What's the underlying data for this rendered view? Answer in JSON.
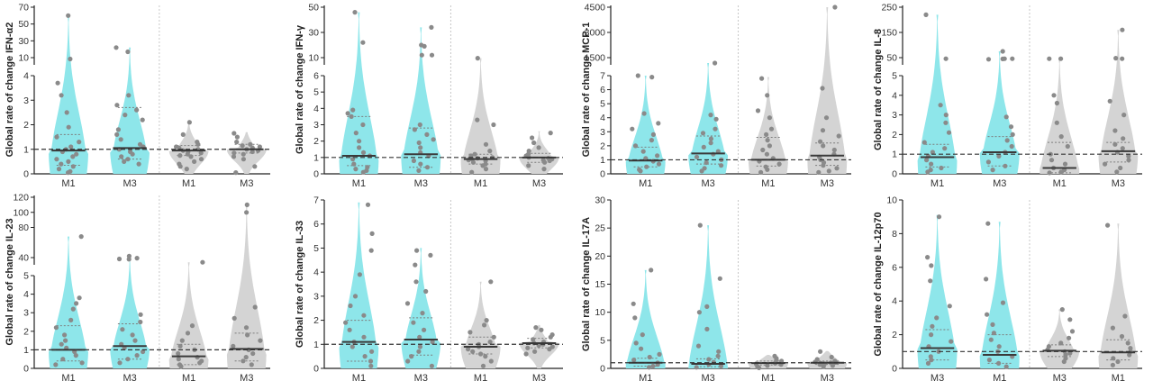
{
  "colors": {
    "cyan": "#8ee6ea",
    "gray": "#d4d4d4",
    "dot": "#8a8a8a",
    "median": "#3a3a3a",
    "quartile": "#7d7d7d",
    "reference": "#333333",
    "divider": "#c8c8c8"
  },
  "chart_data": [
    {
      "type": "violin",
      "ylabel": "Global rate of change IFN-α2",
      "reference_line": 1,
      "y_broken_axis": {
        "lower": [
          0,
          4
        ],
        "upper": [
          0,
          70
        ]
      },
      "lower_ticks": [
        "0",
        "1",
        "2",
        "3",
        "4"
      ],
      "upper_ticks": [
        "10",
        "30",
        "50",
        "70"
      ],
      "categories": [
        "M1",
        "M3",
        "M1",
        "M3"
      ],
      "groups": [
        "cyan",
        "cyan",
        "gray",
        "gray"
      ],
      "medians": [
        0.95,
        1.05,
        0.95,
        1.0
      ],
      "quartiles": [
        [
          0.35,
          1.6
        ],
        [
          0.6,
          2.7
        ],
        [
          0.75,
          1.15
        ],
        [
          0.85,
          1.2
        ]
      ],
      "maxima": [
        60,
        22,
        2.2,
        1.7
      ],
      "points": [
        [
          60,
          7.5,
          3.7,
          3.2,
          2.5,
          1.9,
          1.5,
          1.3,
          1.1,
          1.0,
          0.9,
          0.8,
          0.7,
          0.6,
          0.5,
          0.4,
          0.3,
          0.2,
          0.1,
          0.05
        ],
        [
          22,
          17,
          3.2,
          2.8,
          2.6,
          2.4,
          2.2,
          1.8,
          1.6,
          1.4,
          1.2,
          1.1,
          1.0,
          0.9,
          0.8,
          0.7,
          0.6,
          0.5,
          0.4
        ],
        [
          2.1,
          1.6,
          1.3,
          1.2,
          1.1,
          1.05,
          1.0,
          0.95,
          0.9,
          0.85,
          0.8,
          0.75,
          0.7,
          0.6,
          0.5,
          0.4,
          0.3,
          0.2
        ],
        [
          1.65,
          1.5,
          1.3,
          1.2,
          1.15,
          1.1,
          1.05,
          1.0,
          0.95,
          0.9,
          0.85,
          0.8,
          0.7,
          0.6,
          0.3,
          0.05
        ]
      ]
    },
    {
      "type": "violin",
      "ylabel": "Global rate of change IFN-γ",
      "reference_line": 1,
      "y_broken_axis": {
        "lower": [
          0,
          6
        ],
        "upper": [
          0,
          50
        ]
      },
      "lower_ticks": [
        "0",
        "1",
        "2",
        "3",
        "4",
        "5",
        "6"
      ],
      "upper_ticks": [
        "10",
        "30",
        "50"
      ],
      "categories": [
        "M1",
        "M3",
        "M1",
        "M3"
      ],
      "groups": [
        "cyan",
        "cyan",
        "gray",
        "gray"
      ],
      "medians": [
        1.1,
        1.2,
        0.9,
        1.0
      ],
      "quartiles": [
        [
          0.5,
          3.5
        ],
        [
          0.4,
          2.8
        ],
        [
          0.6,
          1.2
        ],
        [
          0.7,
          1.25
        ]
      ],
      "maxima": [
        46,
        34,
        9,
        2.6
      ],
      "points": [
        [
          46,
          22,
          3.9,
          3.7,
          3.5,
          3.0,
          2.5,
          2.0,
          1.6,
          1.3,
          1.1,
          0.9,
          0.6,
          0.4,
          0.3,
          0.2,
          0.1
        ],
        [
          34,
          20,
          19,
          12,
          12,
          3.0,
          2.7,
          2.4,
          2.1,
          1.9,
          1.6,
          1.3,
          1.1,
          0.8,
          0.6,
          0.4,
          0.2
        ],
        [
          9,
          3.3,
          3.0,
          1.8,
          1.4,
          1.2,
          1.1,
          1.0,
          0.95,
          0.9,
          0.85,
          0.8,
          0.7,
          0.6,
          0.5,
          0.3,
          0.1
        ],
        [
          2.5,
          2.2,
          1.9,
          1.6,
          1.4,
          1.2,
          1.1,
          1.0,
          0.95,
          0.9,
          0.85,
          0.8,
          0.7,
          0.5,
          0.3
        ]
      ]
    },
    {
      "type": "violin",
      "ylabel": "Global rate of change MCP-1",
      "reference_line": 1,
      "y_broken_axis": {
        "lower": [
          0,
          7
        ],
        "upper": [
          0,
          4500
        ]
      },
      "lower_ticks": [
        "0",
        "1",
        "2",
        "3",
        "4",
        "5",
        "6",
        "7"
      ],
      "upper_ticks": [
        "1500",
        "3000",
        "4500"
      ],
      "categories": [
        "M1",
        "M3",
        "M1",
        "M3"
      ],
      "groups": [
        "cyan",
        "cyan",
        "gray",
        "gray"
      ],
      "medians": [
        0.95,
        1.45,
        1.0,
        1.3
      ],
      "quartiles": [
        [
          0.5,
          1.9
        ],
        [
          0.7,
          2.7
        ],
        [
          0.55,
          2.6
        ],
        [
          0.6,
          2.2
        ]
      ],
      "maxima": [
        7.0,
        7.2,
        6.9,
        4500
      ],
      "points": [
        [
          7.0,
          6.9,
          4.3,
          3.6,
          3.2,
          2.8,
          2.4,
          2.0,
          1.6,
          1.3,
          1.1,
          0.9,
          0.7,
          0.5,
          0.3,
          0.2
        ],
        [
          7.2,
          4.2,
          3.9,
          3.2,
          2.9,
          2.5,
          2.2,
          1.9,
          1.6,
          1.4,
          1.2,
          1.0,
          0.8,
          0.6,
          0.4,
          0.2
        ],
        [
          6.8,
          5.6,
          4.5,
          4.0,
          3.2,
          2.8,
          2.4,
          2.0,
          1.7,
          1.4,
          1.1,
          0.9,
          0.7,
          0.5,
          0.3,
          0.1
        ],
        [
          4500,
          6.1,
          4.0,
          3.1,
          2.7,
          2.3,
          2.0,
          1.7,
          1.4,
          1.2,
          1.0,
          0.8,
          0.6,
          0.4,
          0.2,
          0.1
        ]
      ]
    },
    {
      "type": "violin",
      "ylabel": "Global rate of change IL-8",
      "reference_line": 1,
      "y_broken_axis": {
        "lower": [
          0,
          5
        ],
        "upper": [
          0,
          250
        ]
      },
      "lower_ticks": [
        "0",
        "1",
        "2",
        "3",
        "4",
        "5"
      ],
      "upper_ticks": [
        "50",
        "150",
        "250"
      ],
      "categories": [
        "M1",
        "M3",
        "M1",
        "M3"
      ],
      "groups": [
        "cyan",
        "cyan",
        "gray",
        "gray"
      ],
      "medians": [
        0.85,
        1.1,
        0.3,
        1.15
      ],
      "quartiles": [
        [
          0.35,
          1.5
        ],
        [
          0.4,
          1.9
        ],
        [
          0.05,
          1.6
        ],
        [
          0.6,
          1.6
        ]
      ],
      "maxima": [
        220,
        75,
        40,
        160
      ],
      "points": [
        [
          220,
          40,
          3.5,
          3.0,
          2.6,
          2.1,
          1.6,
          1.3,
          1.1,
          0.9,
          0.7,
          0.5,
          0.3,
          0.2,
          0.1
        ],
        [
          75,
          40,
          40,
          38,
          35,
          2.9,
          2.4,
          2.0,
          1.7,
          1.4,
          1.1,
          0.9,
          0.6,
          0.4,
          0.2
        ],
        [
          40,
          40,
          4.0,
          3.6,
          2.6,
          1.9,
          1.4,
          1.0,
          0.7,
          0.5,
          0.3,
          0.2,
          0.1,
          0.05
        ],
        [
          160,
          45,
          40,
          3.7,
          3.0,
          2.2,
          1.8,
          1.5,
          1.3,
          1.1,
          0.9,
          0.7,
          0.5,
          0.3,
          0.1
        ]
      ]
    },
    {
      "type": "violin",
      "ylabel": "Global rate of change IL-23",
      "reference_line": 1,
      "y_broken_axis": {
        "lower": [
          0,
          5
        ],
        "upper": [
          0,
          120
        ]
      },
      "lower_ticks": [
        "0",
        "1",
        "2",
        "3",
        "4",
        "5"
      ],
      "upper_ticks": [
        "40",
        "80",
        "100",
        "120"
      ],
      "categories": [
        "M1",
        "M3",
        "M1",
        "M3"
      ],
      "groups": [
        "cyan",
        "cyan",
        "gray",
        "gray"
      ],
      "medians": [
        1.0,
        1.2,
        0.65,
        1.05
      ],
      "quartiles": [
        [
          0.4,
          2.3
        ],
        [
          0.5,
          2.4
        ],
        [
          0.2,
          1.3
        ],
        [
          0.4,
          1.9
        ]
      ],
      "maxima": [
        68,
        42,
        5.6,
        110
      ],
      "points": [
        [
          68,
          3.8,
          3.5,
          3.2,
          2.6,
          2.2,
          1.8,
          1.5,
          1.3,
          1.1,
          0.9,
          0.7,
          0.5,
          0.3,
          0.2
        ],
        [
          42,
          36,
          30,
          28,
          2.9,
          2.5,
          2.1,
          1.8,
          1.5,
          1.3,
          1.1,
          0.9,
          0.7,
          0.5,
          0.3
        ],
        [
          5.6,
          2.3,
          1.9,
          1.5,
          1.2,
          1.0,
          0.8,
          0.6,
          0.5,
          0.4,
          0.3,
          0.2,
          0.1
        ],
        [
          110,
          100,
          3.3,
          2.7,
          2.2,
          1.8,
          1.5,
          1.2,
          1.0,
          0.8,
          0.6,
          0.4,
          0.2
        ]
      ]
    },
    {
      "type": "violin",
      "ylabel": "Global rate of change IL-33",
      "reference_line": 1,
      "y_broken_axis": {
        "lower": [
          0,
          7
        ],
        "upper": null
      },
      "lower_ticks": [
        "0",
        "1",
        "2",
        "3",
        "4",
        "5",
        "6",
        "7"
      ],
      "upper_ticks": [],
      "categories": [
        "M1",
        "M3",
        "M1",
        "M3"
      ],
      "groups": [
        "cyan",
        "cyan",
        "gray",
        "gray"
      ],
      "medians": [
        1.1,
        1.2,
        0.9,
        1.05
      ],
      "quartiles": [
        [
          0.3,
          2.0
        ],
        [
          0.55,
          2.1
        ],
        [
          0.6,
          1.3
        ],
        [
          0.85,
          1.25
        ]
      ],
      "maxima": [
        6.9,
        5.0,
        3.6,
        1.8
      ],
      "points": [
        [
          6.8,
          5.6,
          4.9,
          3.9,
          3.0,
          2.6,
          2.2,
          1.9,
          1.6,
          1.3,
          1.1,
          0.9,
          0.7,
          0.5,
          0.3,
          0.1
        ],
        [
          4.9,
          4.7,
          4.3,
          3.6,
          3.2,
          2.7,
          2.3,
          1.9,
          1.6,
          1.3,
          1.1,
          0.9,
          0.7,
          0.5,
          0.3,
          0.1
        ],
        [
          3.6,
          2.0,
          1.8,
          1.5,
          1.3,
          1.1,
          1.0,
          0.9,
          0.8,
          0.7,
          0.6,
          0.5,
          0.3,
          0.1
        ],
        [
          1.7,
          1.6,
          1.4,
          1.3,
          1.2,
          1.1,
          1.05,
          1.0,
          0.95,
          0.9,
          0.85,
          0.8,
          0.7,
          0.6
        ]
      ]
    },
    {
      "type": "violin",
      "ylabel": "Global rate of change IL-17A",
      "reference_line": 1,
      "y_broken_axis": {
        "lower": [
          0,
          30
        ],
        "upper": null
      },
      "lower_ticks": [
        "0",
        "5",
        "10",
        "15",
        "20",
        "25",
        "30"
      ],
      "upper_ticks": [],
      "categories": [
        "M1",
        "M3",
        "M1",
        "M3"
      ],
      "groups": [
        "cyan",
        "cyan",
        "gray",
        "gray"
      ],
      "medians": [
        1.0,
        0.8,
        0.95,
        1.0
      ],
      "quartiles": [
        [
          0.4,
          1.8
        ],
        [
          0.3,
          1.7
        ],
        [
          0.6,
          1.3
        ],
        [
          0.7,
          1.3
        ]
      ],
      "maxima": [
        17.5,
        25.5,
        2.4,
        3.1
      ],
      "points": [
        [
          17.5,
          11.5,
          9.0,
          6.0,
          4.5,
          3.5,
          2.5,
          2.0,
          1.5,
          1.0,
          0.7,
          0.4,
          0.2
        ],
        [
          25.5,
          16.0,
          11.0,
          10.0,
          7.0,
          4.0,
          3.0,
          2.2,
          1.6,
          1.1,
          0.7,
          0.4,
          0.2
        ],
        [
          2.2,
          1.8,
          1.5,
          1.3,
          1.1,
          1.0,
          0.9,
          0.8,
          0.7,
          0.5,
          0.3,
          0.1
        ],
        [
          3.0,
          2.0,
          1.6,
          1.3,
          1.15,
          1.05,
          1.0,
          0.9,
          0.8,
          0.7,
          0.5,
          0.3
        ]
      ]
    },
    {
      "type": "violin",
      "ylabel": "Global rate of change IL-12p70",
      "reference_line": 1,
      "y_broken_axis": {
        "lower": [
          0,
          10
        ],
        "upper": null
      },
      "lower_ticks": [
        "0",
        "2",
        "4",
        "6",
        "8",
        "10"
      ],
      "upper_ticks": [],
      "categories": [
        "M3",
        "M1",
        "M3",
        "M1"
      ],
      "groups": [
        "cyan",
        "cyan",
        "gray",
        "gray"
      ],
      "medians": [
        1.2,
        0.8,
        1.05,
        0.95
      ],
      "quartiles": [
        [
          0.5,
          2.3
        ],
        [
          0.3,
          2.0
        ],
        [
          0.7,
          1.4
        ],
        [
          0.5,
          1.7
        ]
      ],
      "maxima": [
        9.1,
        8.7,
        3.5,
        8.6
      ],
      "points": [
        [
          9.0,
          6.6,
          6.1,
          5.2,
          3.7,
          3.0,
          2.5,
          2.0,
          1.6,
          1.3,
          1.0,
          0.7,
          0.5,
          0.3
        ],
        [
          8.6,
          5.3,
          3.9,
          3.2,
          2.6,
          2.1,
          1.7,
          1.3,
          1.0,
          0.7,
          0.5,
          0.3,
          0.1
        ],
        [
          3.5,
          2.9,
          2.2,
          1.8,
          1.5,
          1.3,
          1.1,
          1.0,
          0.9,
          0.8,
          0.6,
          0.4
        ],
        [
          8.5,
          3.1,
          2.4,
          1.9,
          1.5,
          1.2,
          1.0,
          0.8,
          0.6,
          0.4,
          0.2
        ]
      ]
    }
  ]
}
